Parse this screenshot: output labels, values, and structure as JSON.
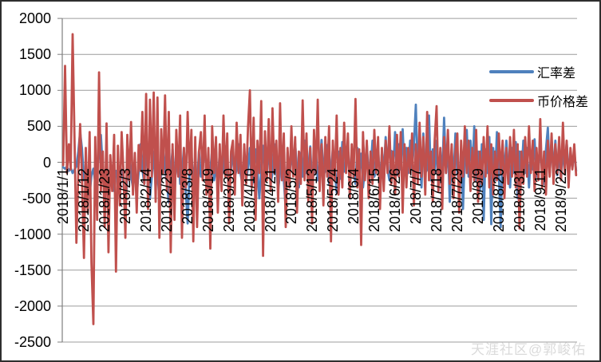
{
  "watermark": "天涯社区@郭峻佑",
  "legend": [
    {
      "label": "汇率差",
      "color": "#4F81BD"
    },
    {
      "label": "币价格差",
      "color": "#C0504D"
    }
  ],
  "chart_data": {
    "type": "line",
    "title": "",
    "xlabel": "",
    "ylabel": "",
    "ylim": [
      -2500,
      2000
    ],
    "grid": true,
    "legend_position": "right-inside",
    "background": "#FFFFFF",
    "grid_color": "#9C9C9C",
    "axis_color": "#7F7F7F",
    "x_unit": "daily values, 2018/1/1 through 2018/9/30",
    "y_ticks": [
      2000,
      1500,
      1000,
      500,
      0,
      -500,
      -1000,
      -1500,
      -2000,
      -2500
    ],
    "y_tick_labels": [
      "2000",
      "1500",
      "1000",
      "500",
      "0",
      "-500",
      "-1000",
      "-1500",
      "-2000",
      "-2500"
    ],
    "x_tick_labels": [
      "2018/1/1",
      "2018/1/12",
      "2018/1/23",
      "2018/2/3",
      "2018/2/14",
      "2018/2/25",
      "2018/3/8",
      "2018/3/19",
      "2018/3/30",
      "2018/4/10",
      "2018/4/21",
      "2018/5/2",
      "2018/5/13",
      "2018/5/24",
      "2018/6/4",
      "2018/6/15",
      "2018/6/26",
      "2018/7/7",
      "2018/7/18",
      "2018/7/29",
      "2018/8/9",
      "2018/8/20",
      "2018/8/31",
      "2018/9/11",
      "2018/9/22"
    ],
    "x_tick_day_index": [
      0,
      11,
      22,
      33,
      44,
      55,
      66,
      77,
      88,
      99,
      110,
      121,
      132,
      143,
      154,
      165,
      176,
      187,
      198,
      209,
      220,
      231,
      242,
      253,
      264
    ],
    "series": [
      {
        "name": "汇率差",
        "color": "#4F81BD",
        "values": [
          -70,
          -90,
          -60,
          -120,
          -80,
          -150,
          -100,
          -60,
          150,
          420,
          180,
          -250,
          -120,
          -300,
          -450,
          -180,
          -90,
          -280,
          -150,
          200,
          380,
          -100,
          -250,
          -60,
          -350,
          -150,
          -80,
          -400,
          -120,
          -220,
          -180,
          -100,
          -280,
          -700,
          -150,
          120,
          -200,
          -350,
          -80,
          -450,
          -150,
          250,
          -100,
          -300,
          180,
          -120,
          -500,
          -200,
          150,
          -350,
          -100,
          -550,
          -150,
          220,
          -80,
          -300,
          -560,
          -120,
          180,
          -250,
          -100,
          150,
          -300,
          -150,
          200,
          -400,
          -850,
          -150,
          120,
          -250,
          -80,
          -300,
          150,
          -200,
          -100,
          250,
          -150,
          -350,
          -120,
          180,
          -250,
          -80,
          -300,
          140,
          -200,
          -100,
          220,
          -150,
          -280,
          -90,
          150,
          -200,
          -100,
          250,
          -150,
          -300,
          120,
          -250,
          -80,
          200,
          -350,
          -150,
          180,
          -100,
          -500,
          -120,
          230,
          -200,
          -80,
          160,
          -300,
          -150,
          250,
          -100,
          -400,
          -120,
          200,
          -250,
          -650,
          140,
          -200,
          180,
          -150,
          260,
          -100,
          -350,
          130,
          -200,
          300,
          -150,
          -80,
          220,
          -300,
          -120,
          170,
          -250,
          -90,
          310,
          -180,
          -120,
          240,
          -300,
          -150,
          190,
          -100,
          -420,
          150,
          -230,
          280,
          -130,
          -90,
          200,
          -250,
          150,
          -100,
          -300,
          200,
          -150,
          120,
          -350,
          -100,
          250,
          -180,
          -90,
          300,
          -200,
          -120,
          180,
          -280,
          140,
          -150,
          350,
          -100,
          -250,
          160,
          -120,
          420,
          -180,
          250,
          -100,
          460,
          -150,
          200,
          -150,
          300,
          -100,
          250,
          800,
          -200,
          150,
          -350,
          400,
          -150,
          -100,
          650,
          -250,
          180,
          -150,
          300,
          -400,
          150,
          -200,
          620,
          -150,
          250,
          -550,
          180,
          -250,
          400,
          -150,
          -300,
          200,
          -650,
          150,
          450,
          -200,
          300,
          -150,
          500,
          -250,
          150,
          -400,
          250,
          -800,
          180,
          -150,
          350,
          -860,
          200,
          -250,
          420,
          -150,
          -900,
          250,
          -180,
          300,
          -120,
          -350,
          200,
          -150,
          280,
          -500,
          150,
          -200,
          300,
          -150,
          200,
          -350,
          150,
          -100,
          320,
          -200,
          -120,
          250,
          -150,
          -300,
          180,
          480,
          -150,
          220,
          -100,
          300,
          -180,
          150,
          -250,
          200,
          -120,
          280,
          -150,
          100,
          -80,
          150,
          -120
        ]
      },
      {
        "name": "币价格差",
        "color": "#C0504D",
        "values": [
          -40,
          1340,
          -150,
          250,
          -100,
          1780,
          300,
          -1120,
          -150,
          530,
          -250,
          -1330,
          200,
          -700,
          420,
          -1400,
          -2250,
          350,
          -800,
          1250,
          -400,
          150,
          -900,
          540,
          -1250,
          100,
          -400,
          380,
          -1520,
          230,
          -600,
          420,
          -150,
          -1050,
          380,
          -250,
          560,
          -450,
          130,
          -700,
          240,
          -120,
          700,
          -300,
          950,
          -650,
          870,
          -200,
          970,
          -550,
          900,
          -1050,
          460,
          -150,
          930,
          -400,
          700,
          -1250,
          250,
          -800,
          450,
          -200,
          650,
          -1050,
          200,
          -350,
          700,
          -150,
          450,
          -1100,
          350,
          -900,
          150,
          420,
          -250,
          650,
          -450,
          200,
          -1200,
          500,
          -150,
          350,
          -700,
          250,
          -400,
          650,
          -200,
          400,
          -850,
          150,
          300,
          -450,
          550,
          -150,
          380,
          -600,
          250,
          -300,
          480,
          1000,
          -350,
          620,
          -800,
          300,
          -150,
          850,
          -1300,
          430,
          -250,
          600,
          -400,
          750,
          -150,
          300,
          -550,
          820,
          -250,
          400,
          -900,
          200,
          -350,
          500,
          -200,
          350,
          -700,
          150,
          -300,
          860,
          -250,
          400,
          -550,
          200,
          -850,
          450,
          -150,
          870,
          -400,
          250,
          -600,
          350,
          -200,
          500,
          -1100,
          300,
          -250,
          650,
          -450,
          200,
          -350,
          550,
          -150,
          400,
          -500,
          250,
          -200,
          880,
          -350,
          180,
          -1150,
          420,
          -250,
          300,
          -500,
          150,
          -300,
          450,
          -150,
          350,
          -650,
          200,
          -400,
          300,
          -150,
          500,
          -300,
          150,
          -450,
          380,
          -200,
          420,
          -700,
          250,
          -350,
          200,
          -150,
          400,
          -600,
          250,
          -300,
          550,
          -200,
          350,
          -450,
          700,
          -250,
          150,
          -550,
          300,
          780,
          -400,
          200,
          -650,
          350,
          -150,
          450,
          -300,
          250,
          -500,
          150,
          400,
          -700,
          300,
          -200,
          500,
          -150,
          300,
          -400,
          200,
          -250,
          450,
          -550,
          150,
          -300,
          350,
          -200,
          500,
          -350,
          250,
          -450,
          150,
          -250,
          400,
          -150,
          300,
          -500,
          200,
          -300,
          350,
          -200,
          450,
          -350,
          250,
          -920,
          150,
          -300,
          350,
          -200,
          500,
          -150,
          300,
          -400,
          200,
          -250,
          600,
          -350,
          150,
          -450,
          300,
          -200,
          400,
          -300,
          250,
          -150,
          350,
          -250,
          550,
          -150,
          300,
          -350,
          200,
          -100,
          250,
          -180
        ]
      }
    ]
  }
}
